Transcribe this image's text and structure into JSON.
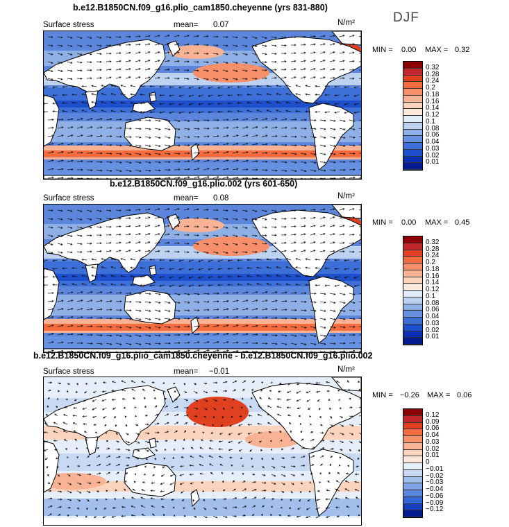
{
  "season": "DJF",
  "panels": [
    {
      "title": "b.e12.B1850CN.f09_g16.plio_cam1850.cheyenne (yrs 831-880)",
      "variable": "Surface stress",
      "mean_label": "mean=",
      "mean": "0.07",
      "units": "N/m²",
      "min_label": "MIN =",
      "min": "0.00",
      "max_label": "MAX =",
      "max": "0.32",
      "colorbar": {
        "labels": [
          "0.32",
          "0.28",
          "0.24",
          "0.2",
          "0.18",
          "0.16",
          "0.14",
          "0.12",
          "0.1",
          "0.08",
          "0.06",
          "0.04",
          "0.03",
          "0.02",
          "0.01"
        ],
        "colors": [
          "#8b0000",
          "#c1272d",
          "#e0401f",
          "#f36b3e",
          "#f7906a",
          "#f9b294",
          "#fcd4bd",
          "#fde9dc",
          "#e0ecf8",
          "#bcd2f0",
          "#8fb0e6",
          "#6690e0",
          "#3d6fd9",
          "#1d4fcc",
          "#0a2fb5",
          "#041a8f"
        ]
      }
    },
    {
      "title": "b.e12.B1850CN.f09_g16.plio.002 (yrs 601-650)",
      "variable": "Surface stress",
      "mean_label": "mean=",
      "mean": "0.08",
      "units": "N/m²",
      "min_label": "MIN =",
      "min": "0.00",
      "max_label": "MAX =",
      "max": "0.45",
      "colorbar": {
        "labels": [
          "0.32",
          "0.28",
          "0.24",
          "0.2",
          "0.18",
          "0.16",
          "0.14",
          "0.12",
          "0.1",
          "0.08",
          "0.06",
          "0.04",
          "0.03",
          "0.02",
          "0.01"
        ],
        "colors": [
          "#8b0000",
          "#c1272d",
          "#e0401f",
          "#f36b3e",
          "#f7906a",
          "#f9b294",
          "#fcd4bd",
          "#fde9dc",
          "#e0ecf8",
          "#bcd2f0",
          "#8fb0e6",
          "#6690e0",
          "#3d6fd9",
          "#1d4fcc",
          "#0a2fb5",
          "#041a8f"
        ]
      }
    },
    {
      "title": "b.e12.B1850CN.f09_g16.plio_cam1850.cheyenne - b.e12.B1850CN.f09_g16.plio.002",
      "variable": "Surface stress",
      "mean_label": "mean=",
      "mean": "−0.01",
      "units": "N/m²",
      "min_label": "MIN =",
      "min": "−0.26",
      "max_label": "MAX =",
      "max": "0.06",
      "colorbar": {
        "labels": [
          "0.12",
          "0.09",
          "0.06",
          "0.04",
          "0.03",
          "0.02",
          "0.01",
          "0",
          "−0.01",
          "−0.02",
          "−0.03",
          "−0.04",
          "−0.06",
          "−0.09",
          "−0.12"
        ],
        "colors": [
          "#8b0000",
          "#c1272d",
          "#e0401f",
          "#f36b3e",
          "#f7906a",
          "#f9b294",
          "#fcd4bd",
          "#fde9dc",
          "#e6eefa",
          "#c8daf3",
          "#a3c0ec",
          "#7ea4e5",
          "#5a87de",
          "#3366d6",
          "#1440bd",
          "#041a8f"
        ]
      }
    }
  ]
}
